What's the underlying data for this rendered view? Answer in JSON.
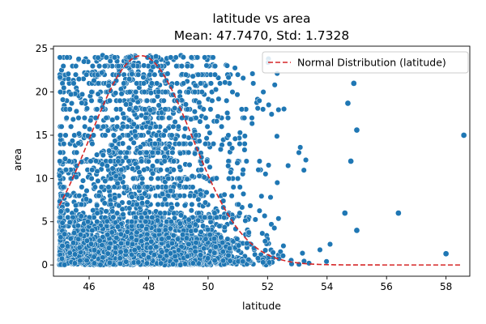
{
  "chart_data": {
    "type": "scatter",
    "title": "latitude vs area",
    "subtitle": "Mean: 47.7470, Std: 1.7328",
    "xlabel": "latitude",
    "ylabel": "area",
    "xlim": [
      44.8,
      58.8
    ],
    "ylim": [
      -1.3,
      25.3
    ],
    "xticks": [
      46,
      48,
      50,
      52,
      54,
      56,
      58
    ],
    "yticks": [
      0,
      5,
      10,
      15,
      20,
      25
    ],
    "grid": false,
    "legend_position": "top-right",
    "colors": {
      "scatter": "#1f77b4",
      "normal_curve": "#d62728"
    },
    "normal_curve": {
      "name": "Normal Distribution (latitude)",
      "mean": 47.747,
      "std": 1.7328,
      "peak_area": 24.2,
      "x_range": [
        45.0,
        58.5
      ]
    },
    "scatter_dense_region": {
      "x_range": [
        45.0,
        54.7
      ],
      "y_range": [
        0,
        24.3
      ],
      "approx_point_count": 3500
    },
    "outliers": [
      {
        "x": 55.0,
        "y": 4.0
      },
      {
        "x": 55.0,
        "y": 15.6
      },
      {
        "x": 54.9,
        "y": 21.0
      },
      {
        "x": 54.7,
        "y": 18.7
      },
      {
        "x": 54.6,
        "y": 6.0
      },
      {
        "x": 54.8,
        "y": 12.0
      },
      {
        "x": 56.4,
        "y": 6.0
      },
      {
        "x": 58.0,
        "y": 1.3
      },
      {
        "x": 58.6,
        "y": 15.0
      }
    ]
  }
}
